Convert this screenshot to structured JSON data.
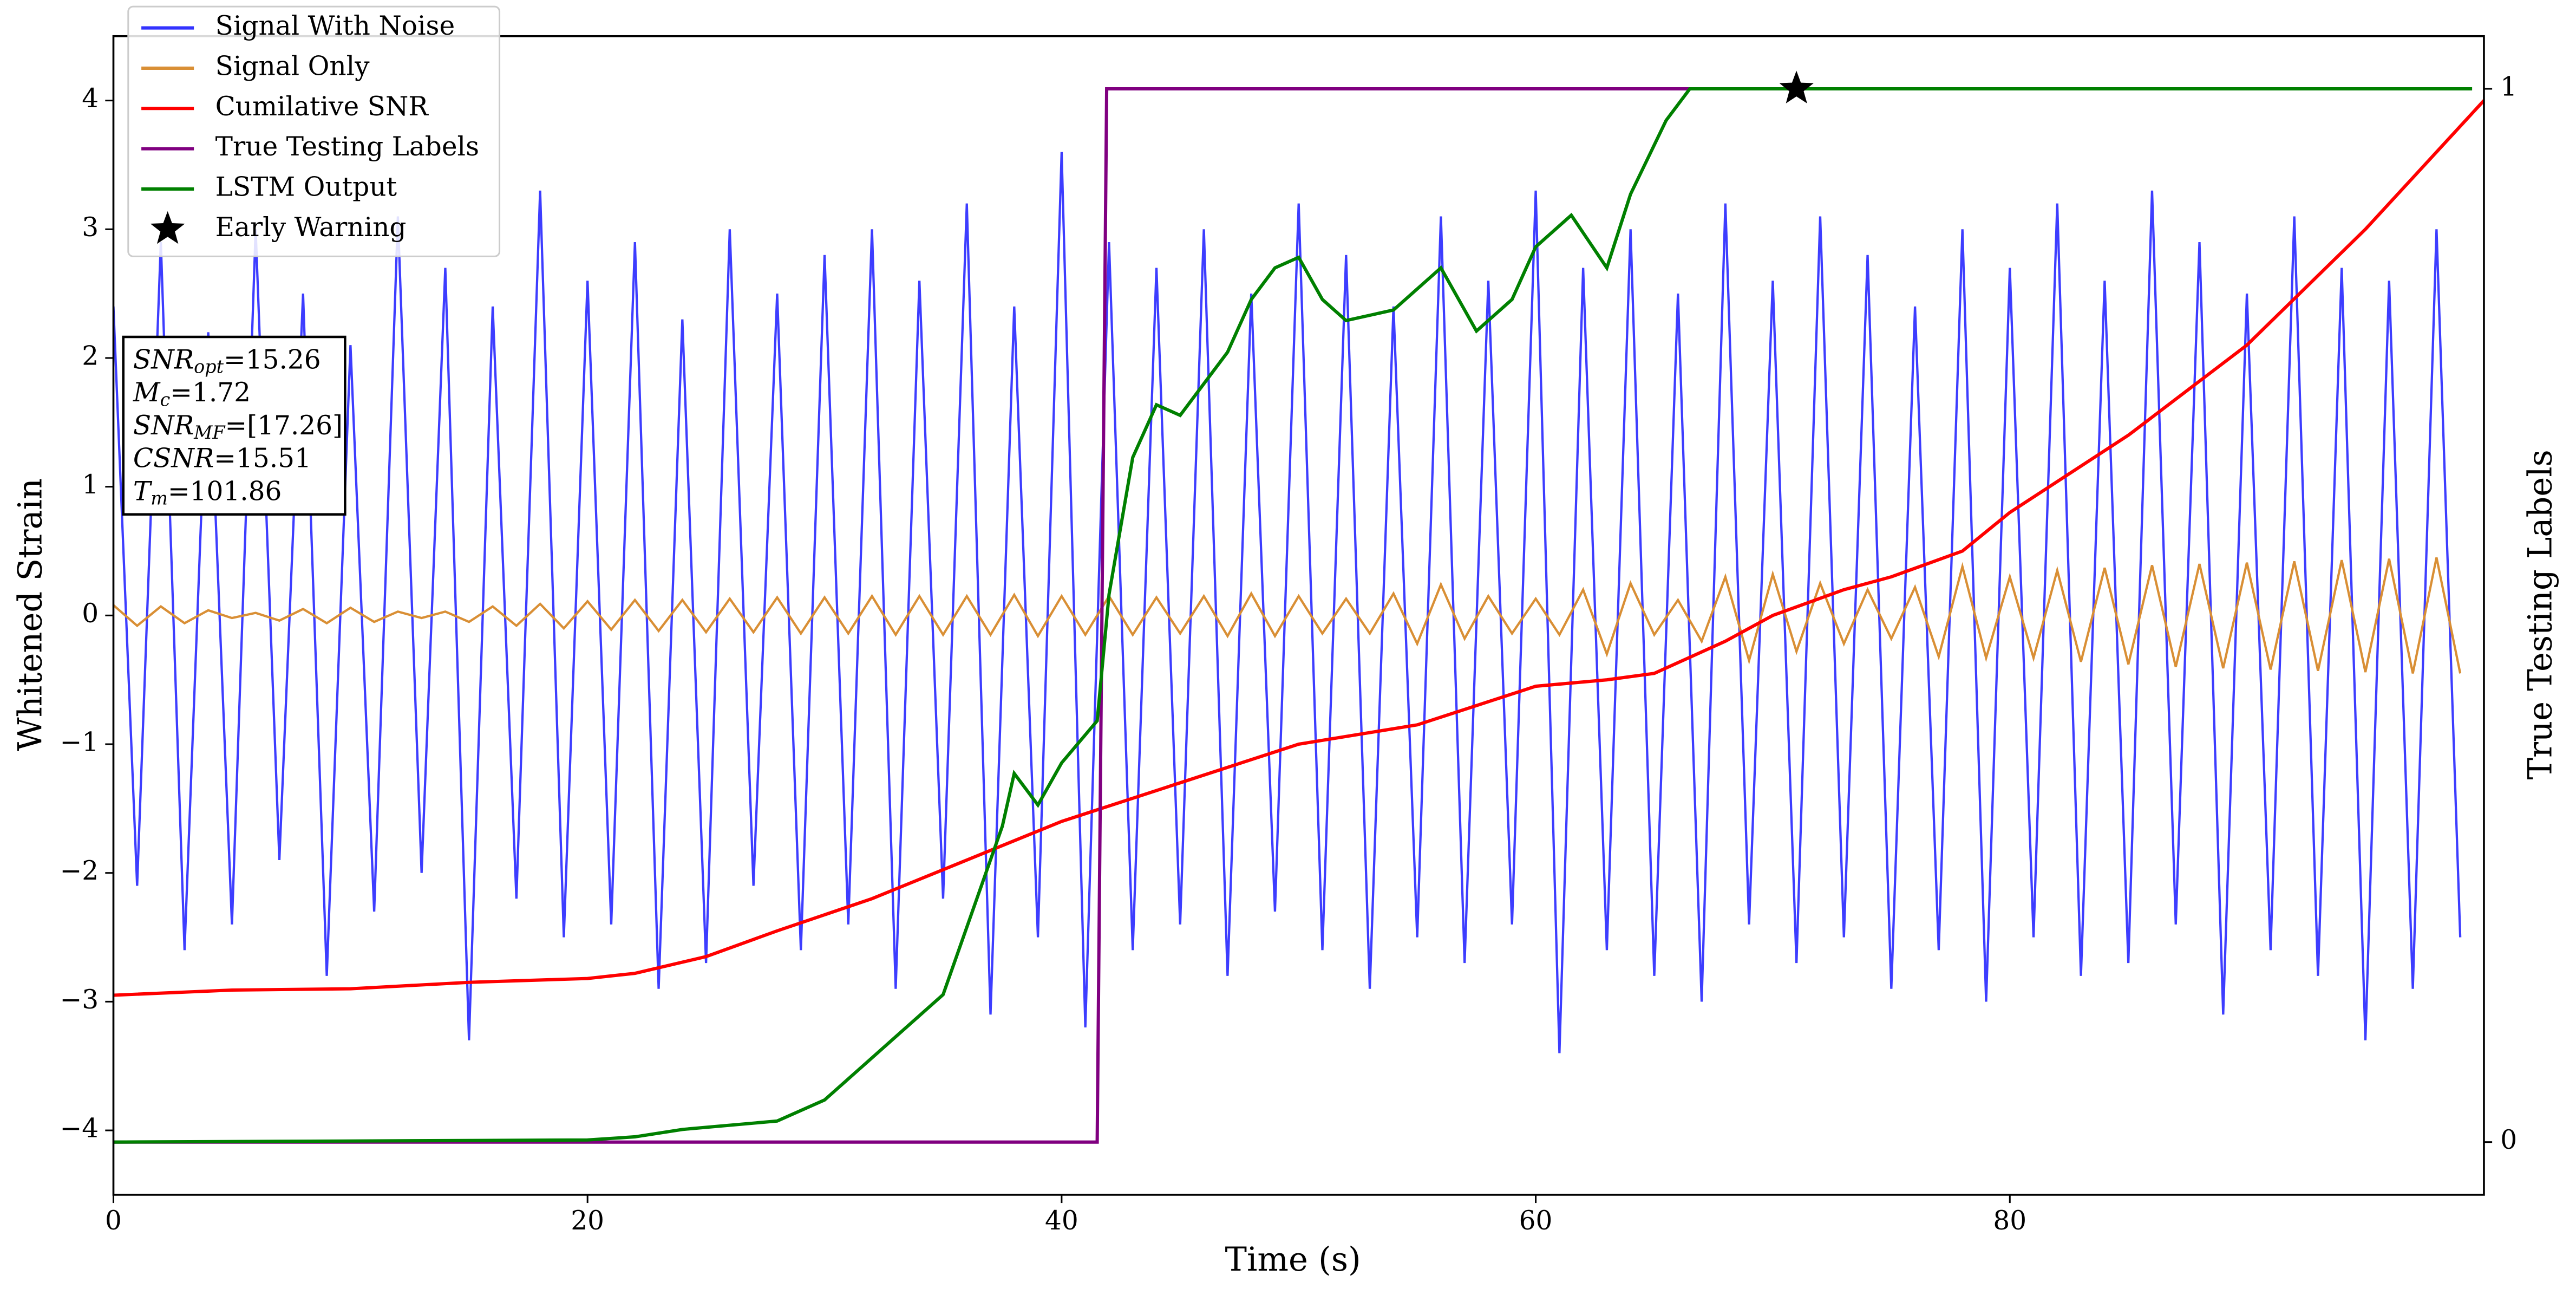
{
  "chart_data": {
    "type": "line",
    "xlabel": "Time (s)",
    "ylabel": "Whitened Strain",
    "y2label": "True Testing Labels",
    "xlim": [
      0,
      100
    ],
    "xticks": [
      0,
      20,
      40,
      60,
      80
    ],
    "ylim": [
      -4.5,
      4.5
    ],
    "yticks": [
      {
        "value": -4,
        "label": "−4"
      },
      {
        "value": -3,
        "label": "−3"
      },
      {
        "value": -2,
        "label": "−2"
      },
      {
        "value": -1,
        "label": "−1"
      },
      0,
      1,
      2,
      3,
      4
    ],
    "y2lim": [
      -0.05,
      1.05
    ],
    "y2ticks": [
      0,
      1
    ],
    "legend": "upper left",
    "series": [
      {
        "name": "Signal With Noise",
        "color": "#3333ff",
        "x": [
          0,
          1,
          2,
          3,
          4,
          5,
          6,
          7,
          8,
          9,
          10,
          11,
          12,
          13,
          14,
          15,
          16,
          17,
          18,
          19,
          20,
          21,
          22,
          23,
          24,
          25,
          26,
          27,
          28,
          29,
          30,
          31,
          32,
          33,
          34,
          35,
          36,
          37,
          38,
          39,
          40,
          41,
          42,
          43,
          44,
          45,
          46,
          47,
          48,
          49,
          50,
          51,
          52,
          53,
          54,
          55,
          56,
          57,
          58,
          59,
          60,
          61,
          62,
          63,
          64,
          65,
          66,
          67,
          68,
          69,
          70,
          71,
          72,
          73,
          74,
          75,
          76,
          77,
          78,
          79,
          80,
          81,
          82,
          83,
          84,
          85,
          86,
          87,
          88,
          89,
          90,
          91,
          92,
          93,
          94,
          95,
          96,
          97,
          98,
          99
        ],
        "values": [
          2.4,
          -2.1,
          2.9,
          -2.6,
          2.2,
          -2.4,
          3.0,
          -1.9,
          2.5,
          -2.8,
          2.1,
          -2.3,
          3.1,
          -2.0,
          2.7,
          -3.3,
          2.4,
          -2.2,
          3.3,
          -2.5,
          2.6,
          -2.4,
          2.9,
          -2.9,
          2.3,
          -2.7,
          3.0,
          -2.1,
          2.5,
          -2.6,
          2.8,
          -2.4,
          3.0,
          -2.9,
          2.6,
          -2.2,
          3.2,
          -3.1,
          2.4,
          -2.5,
          3.6,
          -3.2,
          2.9,
          -2.6,
          2.7,
          -2.4,
          3.0,
          -2.8,
          2.5,
          -2.3,
          3.2,
          -2.6,
          2.8,
          -2.9,
          2.4,
          -2.5,
          3.1,
          -2.7,
          2.6,
          -2.4,
          3.3,
          -3.4,
          2.7,
          -2.6,
          3.0,
          -2.8,
          2.5,
          -3.0,
          3.2,
          -2.4,
          2.6,
          -2.7,
          3.1,
          -2.5,
          2.8,
          -2.9,
          2.4,
          -2.6,
          3.0,
          -3.0,
          2.7,
          -2.5,
          3.2,
          -2.8,
          2.6,
          -2.7,
          3.3,
          -2.4,
          2.9,
          -3.1,
          2.5,
          -2.6,
          3.1,
          -2.8,
          2.7,
          -3.3,
          2.6,
          -2.9,
          3.0,
          -2.5
        ]
      },
      {
        "name": "Signal Only",
        "color": "#d98f35",
        "x": [
          0,
          1,
          2,
          3,
          4,
          5,
          6,
          7,
          8,
          9,
          10,
          11,
          12,
          13,
          14,
          15,
          16,
          17,
          18,
          19,
          20,
          21,
          22,
          23,
          24,
          25,
          26,
          27,
          28,
          29,
          30,
          31,
          32,
          33,
          34,
          35,
          36,
          37,
          38,
          39,
          40,
          41,
          42,
          43,
          44,
          45,
          46,
          47,
          48,
          49,
          50,
          51,
          52,
          53,
          54,
          55,
          56,
          57,
          58,
          59,
          60,
          61,
          62,
          63,
          64,
          65,
          66,
          67,
          68,
          69,
          70,
          71,
          72,
          73,
          74,
          75,
          76,
          77,
          78,
          79,
          80,
          81,
          82,
          83,
          84,
          85,
          86,
          87,
          88,
          89,
          90,
          91,
          92,
          93,
          94,
          95,
          96,
          97,
          98,
          99
        ],
        "values": [
          0.08,
          -0.08,
          0.07,
          -0.06,
          0.04,
          -0.02,
          0.02,
          -0.04,
          0.05,
          -0.06,
          0.06,
          -0.05,
          0.03,
          -0.02,
          0.03,
          -0.05,
          0.07,
          -0.08,
          0.09,
          -0.1,
          0.11,
          -0.11,
          0.12,
          -0.12,
          0.12,
          -0.13,
          0.13,
          -0.13,
          0.14,
          -0.14,
          0.14,
          -0.14,
          0.15,
          -0.15,
          0.15,
          -0.15,
          0.15,
          -0.15,
          0.16,
          -0.16,
          0.15,
          -0.15,
          0.15,
          -0.15,
          0.14,
          -0.14,
          0.15,
          -0.16,
          0.17,
          -0.16,
          0.15,
          -0.14,
          0.13,
          -0.14,
          0.17,
          -0.22,
          0.24,
          -0.18,
          0.15,
          -0.14,
          0.13,
          -0.15,
          0.2,
          -0.3,
          0.25,
          -0.15,
          0.12,
          -0.2,
          0.3,
          -0.35,
          0.32,
          -0.28,
          0.25,
          -0.22,
          0.2,
          -0.18,
          0.22,
          -0.32,
          0.38,
          -0.33,
          0.3,
          -0.33,
          0.35,
          -0.36,
          0.37,
          -0.38,
          0.39,
          -0.4,
          0.4,
          -0.41,
          0.41,
          -0.42,
          0.42,
          -0.43,
          0.43,
          -0.44,
          0.44,
          -0.45,
          0.45,
          -0.45
        ]
      },
      {
        "name": "Cumilative SNR",
        "color": "#ff0000",
        "x": [
          0,
          5,
          10,
          15,
          20,
          22,
          25,
          28,
          32,
          36,
          40,
          45,
          50,
          55,
          60,
          63,
          65,
          68,
          70,
          73,
          75,
          78,
          80,
          85,
          90,
          95,
          100
        ],
        "values": [
          -2.95,
          -2.91,
          -2.9,
          -2.85,
          -2.82,
          -2.78,
          -2.65,
          -2.45,
          -2.2,
          -1.9,
          -1.6,
          -1.3,
          -1.0,
          -0.85,
          -0.55,
          -0.5,
          -0.45,
          -0.2,
          0.0,
          0.2,
          0.3,
          0.5,
          0.8,
          1.4,
          2.1,
          3.0,
          4.0
        ]
      },
      {
        "name": "True Testing Labels",
        "color": "#800080",
        "axis": "y2",
        "x": [
          0,
          41.5,
          41.9,
          99.5
        ],
        "values": [
          0,
          0,
          1,
          1
        ]
      },
      {
        "name": "LSTM Output",
        "color": "#008000",
        "axis": "y2",
        "x": [
          0,
          20,
          22,
          24,
          28,
          30,
          32,
          35,
          37.5,
          38,
          39,
          40,
          41.5,
          42,
          43,
          44,
          45,
          46,
          47,
          48,
          49,
          50,
          51,
          52,
          54,
          56,
          57.5,
          59,
          60,
          61.5,
          63,
          64,
          65.5,
          66.5,
          99.5
        ],
        "values": [
          0,
          0.002,
          0.005,
          0.012,
          0.02,
          0.04,
          0.08,
          0.14,
          0.3,
          0.35,
          0.32,
          0.36,
          0.4,
          0.52,
          0.65,
          0.7,
          0.69,
          0.72,
          0.75,
          0.8,
          0.83,
          0.84,
          0.8,
          0.78,
          0.79,
          0.83,
          0.77,
          0.8,
          0.85,
          0.88,
          0.83,
          0.9,
          0.97,
          1.0,
          1.0
        ]
      },
      {
        "name": "Early Warning",
        "color": "#000000",
        "axis": "y2",
        "marker": "star",
        "x": [
          71
        ],
        "values": [
          1
        ]
      }
    ],
    "annotations": [
      {
        "name": "SNR",
        "sub": "opt",
        "text": "=15.26"
      },
      {
        "name": "M",
        "sub": "c",
        "text": "=1.72"
      },
      {
        "name": "SNR",
        "sub": "MF",
        "text": "=[17.26]"
      },
      {
        "name": "CSNR",
        "text": "=15.51"
      },
      {
        "name": "T",
        "sub": "m",
        "text": "=101.86"
      }
    ]
  }
}
